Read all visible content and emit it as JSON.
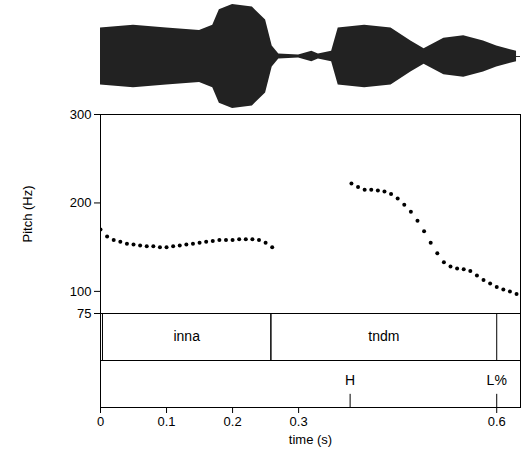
{
  "chart_data": {
    "type": "scatter",
    "xlabel": "time (s)",
    "ylabel": "Pitch (Hz)",
    "color": "#000000",
    "marker": "dot",
    "xlim": [
      0,
      0.636
    ],
    "ylim": [
      75,
      300
    ],
    "xticks": [
      0,
      0.1,
      0.2,
      0.3,
      0.6
    ],
    "yticks": [
      75,
      100,
      200,
      300
    ],
    "x": [
      0.0,
      0.01,
      0.02,
      0.03,
      0.04,
      0.05,
      0.06,
      0.07,
      0.08,
      0.09,
      0.1,
      0.11,
      0.12,
      0.13,
      0.14,
      0.15,
      0.16,
      0.17,
      0.18,
      0.19,
      0.2,
      0.21,
      0.22,
      0.23,
      0.24,
      0.25,
      0.26,
      0.38,
      0.39,
      0.4,
      0.41,
      0.42,
      0.43,
      0.44,
      0.45,
      0.46,
      0.47,
      0.48,
      0.49,
      0.5,
      0.51,
      0.52,
      0.53,
      0.54,
      0.55,
      0.56,
      0.57,
      0.58,
      0.59,
      0.6,
      0.61,
      0.62,
      0.63
    ],
    "values": [
      170,
      162,
      158,
      156,
      154,
      153,
      152,
      151,
      151,
      150,
      150,
      151,
      152,
      153,
      154,
      155,
      156,
      157,
      158,
      158,
      158,
      159,
      159,
      159,
      158,
      155,
      150,
      222,
      218,
      215,
      215,
      214,
      213,
      210,
      205,
      198,
      190,
      180,
      168,
      155,
      143,
      133,
      128,
      126,
      125,
      123,
      118,
      113,
      109,
      105,
      102,
      100,
      97
    ],
    "waveform": {
      "x": [
        0.0,
        0.05,
        0.1,
        0.15,
        0.17,
        0.18,
        0.2,
        0.23,
        0.25,
        0.26,
        0.27,
        0.3,
        0.32,
        0.33,
        0.35,
        0.36,
        0.4,
        0.44,
        0.47,
        0.49,
        0.52,
        0.55,
        0.58,
        0.6,
        0.63
      ],
      "amplitude": [
        0.55,
        0.6,
        0.55,
        0.5,
        0.6,
        0.9,
        1.0,
        0.95,
        0.7,
        0.2,
        0.05,
        0.03,
        0.1,
        0.05,
        0.1,
        0.55,
        0.6,
        0.55,
        0.3,
        0.15,
        0.35,
        0.4,
        0.3,
        0.2,
        0.1
      ]
    },
    "tiers": [
      {
        "intervals": [
          {
            "start": 0.003,
            "end": 0.258,
            "label": "inna"
          },
          {
            "start": 0.258,
            "end": 0.6,
            "label": "tndm"
          }
        ]
      },
      {
        "points": [
          {
            "time": 0.378,
            "label": "H"
          },
          {
            "time": 0.6,
            "label": "L%"
          }
        ]
      }
    ]
  }
}
